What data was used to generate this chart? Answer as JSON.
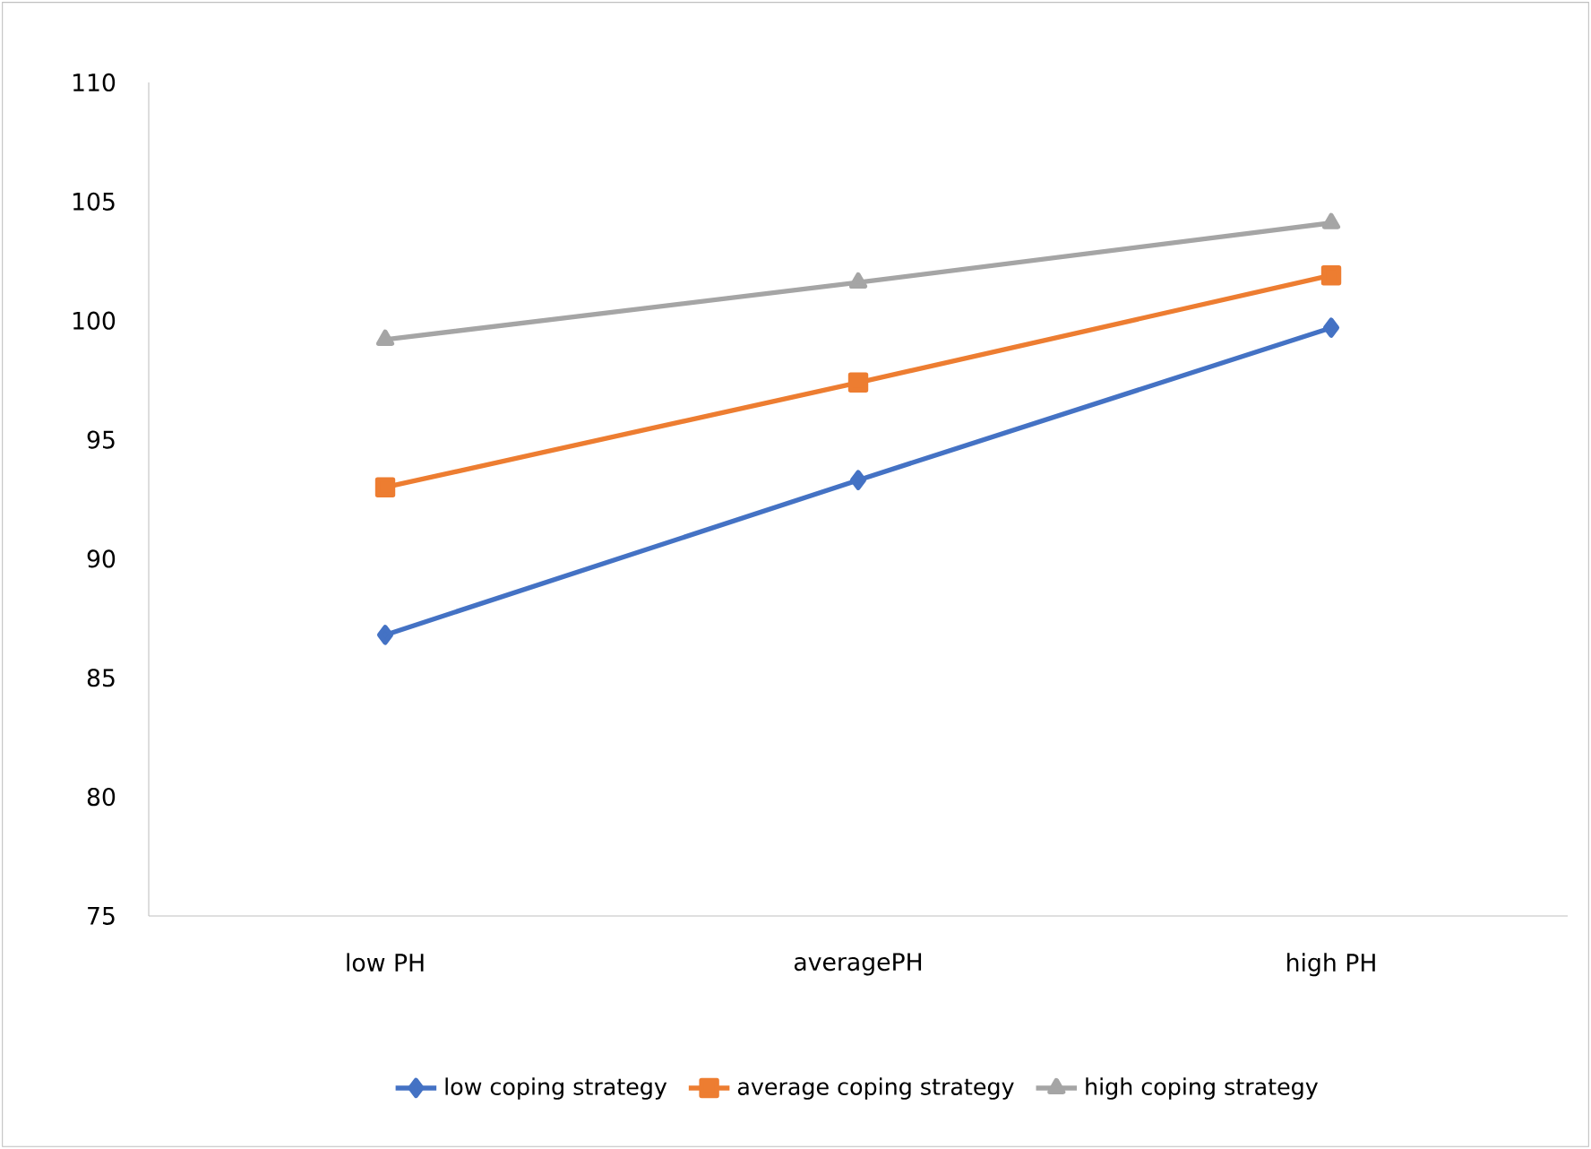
{
  "chart_data": {
    "type": "line",
    "categories": [
      "low PH",
      "averagePH",
      "high PH"
    ],
    "series": [
      {
        "name": "low coping strategy",
        "color": "#4472c4",
        "marker": "diamond",
        "values": [
          86.8,
          93.3,
          99.7
        ]
      },
      {
        "name": "average coping strategy",
        "color": "#ed7d31",
        "marker": "square",
        "values": [
          93.0,
          97.4,
          101.9
        ]
      },
      {
        "name": "high  coping strategy",
        "color": "#a5a5a5",
        "marker": "triangle",
        "values": [
          99.2,
          101.6,
          104.1
        ]
      }
    ],
    "ylim": [
      75,
      110
    ],
    "yticks": [
      75,
      80,
      85,
      90,
      95,
      100,
      105,
      110
    ],
    "grid": false,
    "legend": "bottom",
    "line_style": "solid"
  }
}
